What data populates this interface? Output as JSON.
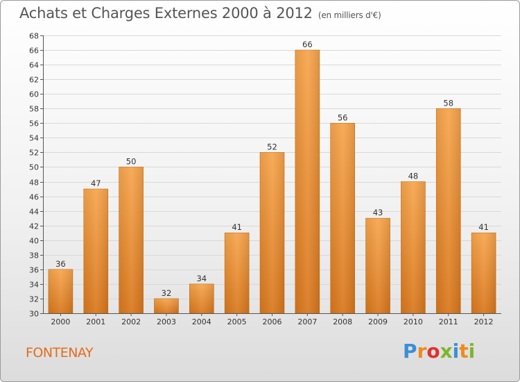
{
  "header": {
    "title": "Achats et Charges Externes 2000 à 2012",
    "subtitle": "(en milliers d'€)"
  },
  "footer": {
    "town": "FONTENAY",
    "logo_letters": [
      "P",
      "r",
      "o",
      "x",
      "i",
      "t",
      "i"
    ],
    "logo_colors": [
      "#3a8fd8",
      "#f08a1c",
      "#e2312d",
      "#7fb52c",
      "#3a8fd8",
      "#f08a1c",
      "#7fb52c"
    ]
  },
  "chart_data": {
    "type": "bar",
    "title": "Achats et Charges Externes 2000 à 2012",
    "subtitle": "(en milliers d'€)",
    "categories": [
      "2000",
      "2001",
      "2002",
      "2003",
      "2004",
      "2005",
      "2006",
      "2007",
      "2008",
      "2009",
      "2010",
      "2011",
      "2012"
    ],
    "values": [
      36,
      47,
      50,
      32,
      34,
      41,
      52,
      66,
      56,
      43,
      48,
      58,
      41
    ],
    "ylim": [
      30,
      68
    ],
    "yticks": [
      30,
      32,
      34,
      36,
      38,
      40,
      42,
      44,
      46,
      48,
      50,
      52,
      54,
      56,
      58,
      60,
      62,
      64,
      66,
      68
    ],
    "xlabel": "",
    "ylabel": "",
    "grid": true,
    "bar_color": "#f39a3d",
    "bar_color_dark": "#d97a1e"
  }
}
